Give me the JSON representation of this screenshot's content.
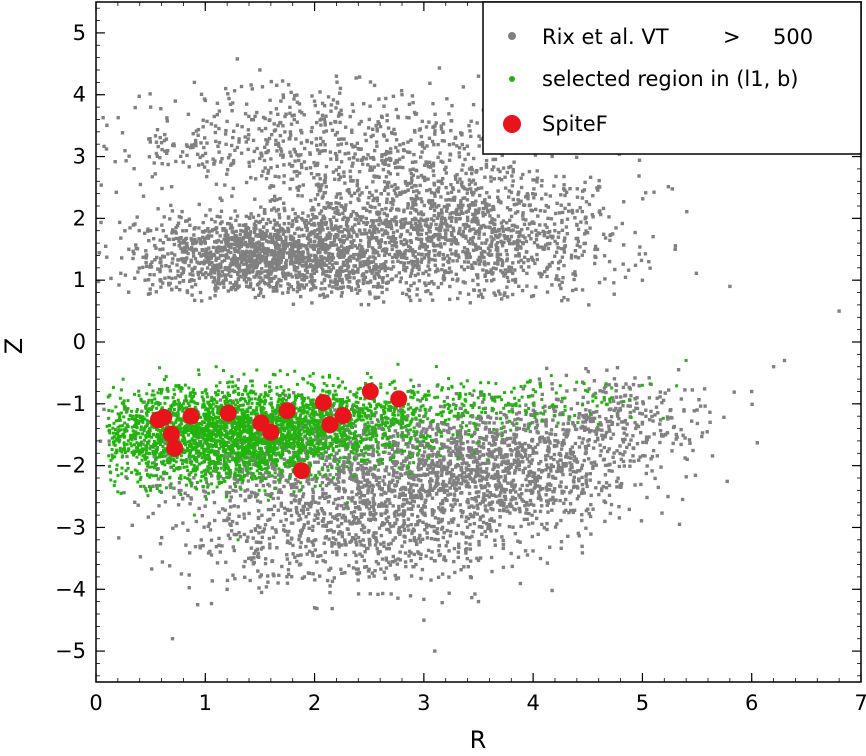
{
  "chart_data": {
    "type": "scatter",
    "xlabel": "R",
    "ylabel": "Z",
    "xlim": [
      0,
      7
    ],
    "ylim": [
      -5.5,
      5.5
    ],
    "xticks": [
      0,
      1,
      2,
      3,
      4,
      5,
      6,
      7
    ],
    "yticks": [
      5,
      4,
      3,
      2,
      1,
      0,
      -1,
      -2,
      -3,
      -4,
      -5
    ],
    "xtick_labels": [
      "0",
      "1",
      "2",
      "3",
      "4",
      "5",
      "6",
      "7"
    ],
    "ytick_labels": [
      "5",
      "4",
      "3",
      "2",
      "1",
      "0",
      "−1",
      "−2",
      "−3",
      "−4",
      "−5"
    ],
    "grid": false,
    "legend_position": "top-right",
    "series": [
      {
        "name": "Rix et al. VT > 500",
        "color": "#808080",
        "marker": "small-square",
        "description_note": "dense cloud of points; upper band Z≈0.6..4.8 with R≈0..5.3, lower band Z≈-0.5..-5.0 with R≈0.2..6.3",
        "points": [
          [
            0.3,
            1.5
          ],
          [
            0.5,
            1.8
          ],
          [
            0.8,
            1.3
          ],
          [
            1.0,
            1.6
          ],
          [
            1.2,
            1.2
          ],
          [
            1.4,
            1.7
          ],
          [
            1.6,
            1.1
          ],
          [
            1.8,
            1.9
          ],
          [
            2.0,
            1.4
          ],
          [
            2.3,
            2.0
          ],
          [
            2.6,
            1.6
          ],
          [
            2.9,
            2.2
          ],
          [
            3.2,
            1.7
          ],
          [
            3.5,
            2.1
          ],
          [
            3.8,
            1.8
          ],
          [
            4.1,
            1.5
          ],
          [
            4.4,
            1.9
          ],
          [
            4.7,
            1.3
          ],
          [
            5.0,
            1.0
          ],
          [
            5.3,
            1.5
          ],
          [
            5.8,
            0.9
          ],
          [
            6.3,
            -0.3
          ],
          [
            6.8,
            0.5
          ],
          [
            7.0,
            -0.6
          ],
          [
            0.5,
            3.8
          ],
          [
            0.9,
            4.2
          ],
          [
            1.5,
            4.4
          ],
          [
            2.2,
            4.3
          ],
          [
            2.8,
            4.0
          ],
          [
            3.5,
            4.3
          ],
          [
            4.2,
            3.6
          ],
          [
            4.8,
            3.3
          ],
          [
            1.0,
            -2.5
          ],
          [
            1.5,
            -3.0
          ],
          [
            2.0,
            -2.2
          ],
          [
            2.5,
            -2.7
          ],
          [
            3.0,
            -2.0
          ],
          [
            3.5,
            -2.5
          ],
          [
            4.0,
            -1.8
          ],
          [
            4.5,
            -1.6
          ],
          [
            5.0,
            -1.3
          ],
          [
            5.5,
            -1.1
          ],
          [
            6.0,
            -0.8
          ],
          [
            6.2,
            -0.4
          ],
          [
            1.2,
            -4.0
          ],
          [
            2.0,
            -4.3
          ],
          [
            3.0,
            -4.5
          ],
          [
            3.5,
            -4.2
          ],
          [
            2.5,
            -3.8
          ],
          [
            0.7,
            -4.8
          ],
          [
            3.1,
            -5.0
          ],
          [
            1.8,
            -1.0
          ],
          [
            2.7,
            -1.3
          ]
        ]
      },
      {
        "name": "selected region in (l1, b)",
        "color": "#22b30e",
        "marker": "small-square",
        "description_note": "dense cloud in lower-left; R≈0.1..5.4, Z≈-0.3..-3.4",
        "points": [
          [
            0.2,
            -1.5
          ],
          [
            0.4,
            -1.2
          ],
          [
            0.6,
            -1.8
          ],
          [
            0.8,
            -1.0
          ],
          [
            1.0,
            -1.6
          ],
          [
            1.2,
            -2.0
          ],
          [
            1.4,
            -1.3
          ],
          [
            1.6,
            -1.9
          ],
          [
            1.8,
            -1.1
          ],
          [
            2.0,
            -1.7
          ],
          [
            2.2,
            -1.4
          ],
          [
            2.5,
            -1.0
          ],
          [
            2.8,
            -1.5
          ],
          [
            3.1,
            -0.9
          ],
          [
            3.5,
            -1.2
          ],
          [
            4.0,
            -1.0
          ],
          [
            4.5,
            -0.8
          ],
          [
            5.0,
            -0.7
          ],
          [
            5.4,
            -0.3
          ],
          [
            0.9,
            -2.8
          ],
          [
            1.3,
            -3.2
          ],
          [
            1.6,
            -2.5
          ],
          [
            0.5,
            -2.4
          ],
          [
            2.3,
            -2.6
          ],
          [
            1.1,
            -0.4
          ],
          [
            1.9,
            -0.6
          ]
        ]
      },
      {
        "name": "SpiteF",
        "color": "#e8141b",
        "marker": "large-circle",
        "points": [
          [
            0.57,
            -1.26
          ],
          [
            0.62,
            -1.22
          ],
          [
            0.69,
            -1.49
          ],
          [
            0.72,
            -1.72
          ],
          [
            0.87,
            -1.2
          ],
          [
            1.21,
            -1.15
          ],
          [
            1.51,
            -1.31
          ],
          [
            1.6,
            -1.46
          ],
          [
            1.75,
            -1.11
          ],
          [
            1.88,
            -2.08
          ],
          [
            2.08,
            -0.98
          ],
          [
            2.14,
            -1.34
          ],
          [
            2.26,
            -1.19
          ],
          [
            2.51,
            -0.8
          ],
          [
            2.77,
            -0.92
          ]
        ]
      }
    ]
  },
  "legend": {
    "entries": [
      {
        "label_prefix": "Rix et al. VT",
        "label_op": ">",
        "label_value": "500"
      },
      {
        "label": "selected region in (l1, b)"
      },
      {
        "label": "SpiteF"
      }
    ]
  }
}
